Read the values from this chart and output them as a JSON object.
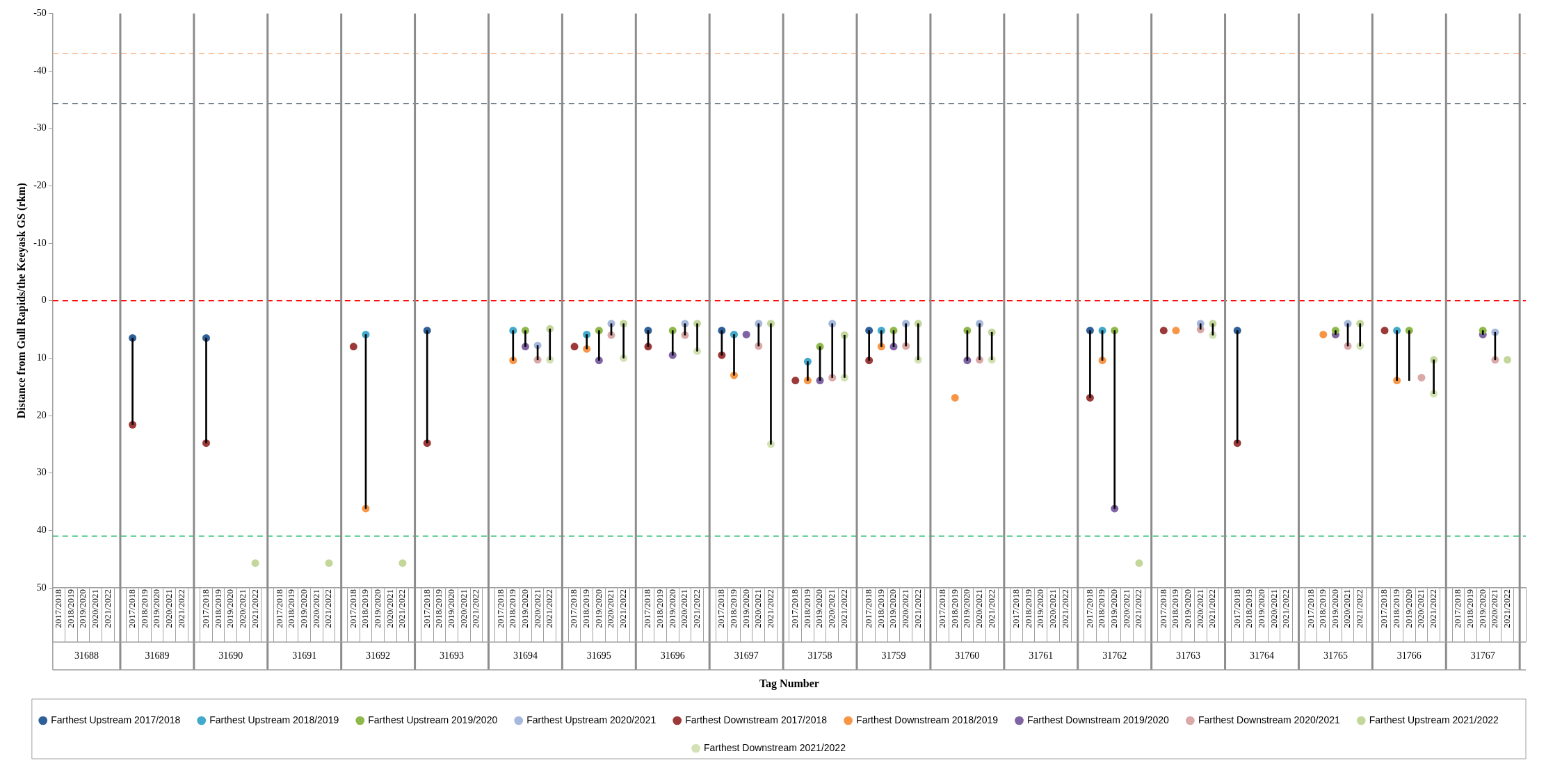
{
  "chart_data": {
    "type": "scatter",
    "xlabel": "Tag Number",
    "ylabel": "Distance from Gull Rapids/the Keeyask GS (rkm)",
    "categories": [
      "2017/2018",
      "2018/2019",
      "2019/2020",
      "2020/2021",
      "2021/2022",
      null,
      "2017/2018",
      "2018/2019",
      "2019/2020",
      "2020/2021",
      "2021/2022",
      null,
      "2017/2018",
      "2018/2019",
      "2019/2020",
      "2020/2021",
      "2021/2022",
      null,
      "2017/2018",
      "2018/2019",
      "2019/2020",
      "2020/2021",
      "2021/2022",
      null,
      "2017/2018",
      "2018/2019",
      "2019/2020",
      "2020/2021",
      "2021/2022",
      null,
      "2017/2018",
      "2018/2019",
      "2019/2020",
      "2020/2021",
      "2021/2022",
      null,
      "2017/2018",
      "2018/2019",
      "2019/2020",
      "2020/2021",
      "2021/2022",
      null,
      "2017/2018",
      "2018/2019",
      "2019/2020",
      "2020/2021",
      "2021/2022",
      null,
      "2017/2018",
      "2018/2019",
      "2019/2020",
      "2020/2021",
      "2021/2022",
      null,
      "2017/2018",
      "2018/2019",
      "2019/2020",
      "2020/2021",
      "2021/2022",
      null,
      "2017/2018",
      "2018/2019",
      "2019/2020",
      "2020/2021",
      "2021/2022",
      null,
      "2017/2018",
      "2018/2019",
      "2019/2020",
      "2020/2021",
      "2021/2022",
      null,
      "2017/2018",
      "2018/2019",
      "2019/2020",
      "2020/2021",
      "2021/2022",
      null,
      "2017/2018",
      "2018/2019",
      "2019/2020",
      "2020/2021",
      "2021/2022",
      null,
      "2017/2018",
      "2018/2019",
      "2019/2020",
      "2020/2021",
      "2021/2022",
      null,
      "2017/2018",
      "2018/2019",
      "2019/2020",
      "2020/2021",
      "2021/2022",
      null,
      "2017/2018",
      "2018/2019",
      "2019/2020",
      "2020/2021",
      "2021/2022",
      null,
      "2017/2018",
      "2018/2019",
      "2019/2020",
      "2020/2021",
      "2021/2022",
      null,
      "2017/2018",
      "2018/2019",
      "2019/2020",
      "2020/2021",
      "2021/2022",
      null,
      "2017/2018",
      "2018/2019",
      "2019/2020",
      "2020/2021",
      "2021/2022",
      null
    ],
    "annotations": [
      "31688",
      "31689",
      "31690",
      "31691",
      "31692",
      "31693",
      "31694",
      "31695",
      "31696",
      "31697",
      "31758",
      "31759",
      "31760",
      "31761",
      "31762",
      "31763",
      "31764",
      "31765",
      "31766",
      "31767"
    ],
    "ylim": [
      50,
      -50
    ],
    "yticks": [
      -50,
      -40,
      -30,
      -20,
      -10,
      0,
      10,
      20,
      30,
      40,
      50
    ],
    "legend": "bottom",
    "marker": "circle",
    "ref_lines": [
      {
        "axis": "y",
        "value": -43,
        "color": "#f4b183",
        "line_style": "dashed"
      },
      {
        "axis": "y",
        "value": -34.3,
        "color": "#44546a",
        "line_style": "dashed"
      },
      {
        "axis": "y",
        "value": 0,
        "color": "#ff0000",
        "line_style": "dashed"
      },
      {
        "axis": "y",
        "value": 41,
        "color": "#00b050",
        "line_style": "dashed"
      }
    ],
    "series": [
      {
        "type": "bar",
        "color": "#000000",
        "base": [
          null,
          null,
          null,
          null,
          null,
          null,
          6.5,
          null,
          null,
          null,
          null,
          null,
          6.5,
          null,
          null,
          null,
          null,
          null,
          null,
          null,
          null,
          null,
          null,
          null,
          null,
          5.9,
          null,
          null,
          null,
          null,
          5.2,
          null,
          null,
          null,
          null,
          null,
          null,
          5.2,
          5.2,
          7.8,
          4.9,
          null,
          null,
          5.9,
          5.2,
          4.0,
          4.0,
          null,
          5.2,
          null,
          5.2,
          4.0,
          4.0,
          null,
          5.2,
          5.9,
          null,
          4.0,
          4.0,
          null,
          null,
          10.6,
          8.0,
          4.0,
          6.0,
          null,
          5.2,
          5.2,
          5.2,
          4.0,
          4.0,
          null,
          null,
          null,
          5.2,
          4.0,
          5.5,
          null,
          null,
          null,
          null,
          null,
          null,
          null,
          5.2,
          5.2,
          5.2,
          null,
          null,
          null,
          null,
          null,
          null,
          4.0,
          4.0,
          null,
          5.2,
          null,
          null,
          null,
          null,
          null,
          null,
          null,
          5.2,
          4.0,
          4.0,
          null,
          null,
          5.2,
          5.2,
          null,
          10.3,
          null,
          null,
          null,
          5.2,
          5.5,
          null,
          null
        ],
        "values": [
          null,
          null,
          null,
          null,
          null,
          null,
          15.1,
          null,
          null,
          null,
          null,
          null,
          18.3,
          null,
          null,
          null,
          null,
          null,
          null,
          null,
          null,
          null,
          null,
          null,
          null,
          30.3,
          null,
          null,
          null,
          null,
          19.6,
          null,
          null,
          null,
          null,
          null,
          null,
          5.2,
          2.8,
          2.5,
          5.4,
          null,
          null,
          2.5,
          5.2,
          2.0,
          6.0,
          null,
          2.8,
          null,
          4.3,
          2.0,
          4.8,
          null,
          4.3,
          7.1,
          null,
          3.9,
          21.0,
          null,
          null,
          3.3,
          5.9,
          9.4,
          7.4,
          null,
          5.2,
          2.8,
          2.8,
          3.9,
          6.3,
          null,
          null,
          null,
          5.2,
          6.3,
          4.8,
          null,
          null,
          null,
          null,
          null,
          null,
          null,
          11.7,
          5.2,
          31.0,
          null,
          null,
          null,
          null,
          null,
          null,
          1.0,
          2.0,
          null,
          19.6,
          null,
          null,
          null,
          null,
          null,
          null,
          null,
          0.7,
          3.9,
          3.9,
          null,
          null,
          8.7,
          8.7,
          null,
          5.9,
          null,
          null,
          null,
          0.7,
          4.8,
          null,
          null
        ]
      },
      {
        "name": "Farthest Upstream 2017/2018",
        "color": "#2f5f98",
        "values": [
          null,
          null,
          null,
          null,
          null,
          null,
          6.5,
          null,
          null,
          null,
          null,
          null,
          6.5,
          null,
          null,
          null,
          null,
          null,
          null,
          null,
          null,
          null,
          null,
          null,
          null,
          null,
          null,
          null,
          null,
          null,
          5.2,
          null,
          null,
          null,
          null,
          null,
          null,
          null,
          null,
          null,
          null,
          null,
          null,
          null,
          null,
          null,
          null,
          null,
          5.2,
          null,
          null,
          null,
          null,
          null,
          5.2,
          null,
          null,
          null,
          null,
          null,
          null,
          null,
          null,
          null,
          null,
          null,
          5.2,
          null,
          null,
          null,
          null,
          null,
          null,
          null,
          null,
          null,
          null,
          null,
          null,
          null,
          null,
          null,
          null,
          null,
          5.2,
          null,
          null,
          null,
          null,
          null,
          null,
          null,
          null,
          null,
          null,
          null,
          5.2,
          null,
          null,
          null,
          null,
          null,
          null,
          null,
          null,
          null,
          null,
          null,
          null,
          null,
          null,
          null,
          null,
          null,
          null,
          null,
          null,
          null,
          null,
          null
        ]
      },
      {
        "name": "Farthest Upstream 2018/2019",
        "color": "#41a9c9",
        "values": [
          null,
          null,
          null,
          null,
          null,
          null,
          null,
          null,
          null,
          null,
          null,
          null,
          null,
          null,
          null,
          null,
          null,
          null,
          null,
          null,
          null,
          null,
          null,
          null,
          null,
          5.9,
          null,
          null,
          null,
          null,
          null,
          null,
          null,
          null,
          null,
          null,
          null,
          5.2,
          null,
          null,
          null,
          null,
          null,
          5.9,
          null,
          null,
          null,
          null,
          null,
          null,
          null,
          null,
          null,
          null,
          null,
          5.9,
          null,
          null,
          null,
          null,
          null,
          10.6,
          null,
          null,
          null,
          null,
          null,
          5.2,
          null,
          null,
          null,
          null,
          null,
          null,
          null,
          null,
          null,
          null,
          null,
          null,
          null,
          null,
          null,
          null,
          null,
          5.2,
          null,
          null,
          null,
          null,
          null,
          null,
          null,
          null,
          null,
          null,
          null,
          null,
          null,
          null,
          null,
          null,
          null,
          null,
          null,
          null,
          null,
          null,
          null,
          5.2,
          null,
          null,
          null,
          null,
          null,
          null,
          null,
          null,
          null,
          null
        ]
      },
      {
        "name": "Farthest Upstream 2019/2020",
        "color": "#8fb84a",
        "values": [
          null,
          null,
          null,
          null,
          null,
          null,
          null,
          null,
          null,
          null,
          null,
          null,
          null,
          null,
          null,
          null,
          null,
          null,
          null,
          null,
          null,
          null,
          null,
          null,
          null,
          null,
          null,
          null,
          null,
          null,
          null,
          null,
          null,
          null,
          null,
          null,
          null,
          null,
          5.2,
          null,
          null,
          null,
          null,
          null,
          5.2,
          null,
          null,
          null,
          null,
          null,
          5.2,
          null,
          null,
          null,
          null,
          null,
          null,
          null,
          null,
          null,
          null,
          null,
          8.0,
          null,
          null,
          null,
          null,
          null,
          5.2,
          null,
          null,
          null,
          null,
          null,
          5.2,
          null,
          null,
          null,
          null,
          null,
          null,
          null,
          null,
          null,
          null,
          null,
          5.2,
          null,
          null,
          null,
          null,
          null,
          null,
          null,
          null,
          null,
          null,
          null,
          null,
          null,
          null,
          null,
          null,
          null,
          5.2,
          null,
          null,
          null,
          null,
          null,
          5.2,
          null,
          null,
          null,
          null,
          null,
          5.2,
          null,
          null,
          null
        ]
      },
      {
        "name": "Farthest Upstream 2020/2021",
        "color": "#a6b8dc",
        "values": [
          null,
          null,
          null,
          null,
          null,
          null,
          null,
          null,
          null,
          null,
          null,
          null,
          null,
          null,
          null,
          null,
          null,
          null,
          null,
          null,
          null,
          null,
          null,
          null,
          null,
          null,
          null,
          null,
          null,
          null,
          null,
          null,
          null,
          null,
          null,
          null,
          null,
          null,
          null,
          7.8,
          null,
          null,
          null,
          null,
          null,
          4.0,
          null,
          null,
          null,
          null,
          null,
          4.0,
          null,
          null,
          null,
          null,
          null,
          4.0,
          null,
          null,
          null,
          null,
          null,
          4.0,
          null,
          null,
          null,
          null,
          null,
          4.0,
          null,
          null,
          null,
          null,
          null,
          4.0,
          null,
          null,
          null,
          null,
          null,
          null,
          null,
          null,
          null,
          null,
          null,
          null,
          null,
          null,
          null,
          null,
          null,
          4.0,
          null,
          null,
          null,
          null,
          null,
          null,
          null,
          null,
          null,
          null,
          null,
          4.0,
          null,
          null,
          null,
          null,
          null,
          null,
          null,
          null,
          null,
          null,
          null,
          5.5,
          null,
          null
        ]
      },
      {
        "name": "Farthest Downstream 2017/2018",
        "color": "#9b3a38",
        "values": [
          null,
          null,
          null,
          null,
          null,
          null,
          21.6,
          null,
          null,
          null,
          null,
          null,
          24.8,
          null,
          null,
          null,
          null,
          null,
          null,
          null,
          null,
          null,
          null,
          null,
          8.0,
          null,
          null,
          null,
          null,
          null,
          24.8,
          null,
          null,
          null,
          null,
          null,
          null,
          null,
          null,
          null,
          null,
          null,
          8.0,
          null,
          null,
          null,
          null,
          null,
          8.0,
          null,
          null,
          null,
          null,
          null,
          9.5,
          null,
          null,
          null,
          null,
          null,
          13.9,
          null,
          null,
          null,
          null,
          null,
          10.4,
          null,
          null,
          null,
          null,
          null,
          null,
          null,
          null,
          null,
          null,
          null,
          null,
          null,
          null,
          null,
          null,
          null,
          16.9,
          null,
          null,
          null,
          null,
          null,
          5.2,
          null,
          null,
          null,
          null,
          null,
          24.8,
          null,
          null,
          null,
          null,
          null,
          null,
          null,
          null,
          null,
          null,
          null,
          5.2,
          null,
          null,
          null,
          null,
          null,
          null,
          null,
          null,
          null,
          null,
          null
        ]
      },
      {
        "name": "Farthest Downstream 2018/2019",
        "color": "#f79646",
        "values": [
          null,
          null,
          null,
          null,
          null,
          null,
          null,
          null,
          null,
          null,
          null,
          null,
          null,
          null,
          null,
          null,
          null,
          null,
          null,
          null,
          null,
          null,
          null,
          null,
          null,
          36.2,
          null,
          null,
          null,
          null,
          null,
          null,
          null,
          null,
          null,
          null,
          null,
          10.4,
          null,
          null,
          null,
          null,
          null,
          8.4,
          null,
          null,
          null,
          null,
          null,
          null,
          null,
          null,
          null,
          null,
          null,
          13.0,
          null,
          null,
          null,
          null,
          null,
          13.9,
          null,
          null,
          null,
          null,
          null,
          8.0,
          null,
          null,
          null,
          null,
          null,
          16.9,
          null,
          null,
          null,
          null,
          null,
          null,
          null,
          null,
          null,
          null,
          null,
          10.4,
          null,
          null,
          null,
          null,
          null,
          5.2,
          null,
          null,
          null,
          null,
          null,
          null,
          null,
          null,
          null,
          null,
          null,
          5.9,
          null,
          null,
          null,
          null,
          null,
          13.9,
          null,
          null,
          null,
          null,
          null,
          null,
          null,
          null,
          null,
          null
        ]
      },
      {
        "name": "Farthest Downstream 2019/2020",
        "color": "#7f63a3",
        "values": [
          null,
          null,
          null,
          null,
          null,
          null,
          null,
          null,
          null,
          null,
          null,
          null,
          null,
          null,
          null,
          null,
          null,
          null,
          null,
          null,
          null,
          null,
          null,
          null,
          null,
          null,
          null,
          null,
          null,
          null,
          null,
          null,
          null,
          null,
          null,
          null,
          null,
          null,
          8.0,
          null,
          null,
          null,
          null,
          null,
          10.4,
          null,
          null,
          null,
          null,
          null,
          9.5,
          null,
          null,
          null,
          null,
          null,
          5.9,
          null,
          null,
          null,
          null,
          null,
          13.9,
          null,
          null,
          null,
          null,
          null,
          8.0,
          null,
          null,
          null,
          null,
          null,
          10.4,
          null,
          null,
          null,
          null,
          null,
          null,
          null,
          null,
          null,
          null,
          null,
          36.2,
          null,
          null,
          null,
          null,
          null,
          null,
          null,
          null,
          null,
          null,
          null,
          null,
          null,
          null,
          null,
          null,
          null,
          5.9,
          null,
          null,
          null,
          null,
          null,
          null,
          null,
          null,
          null,
          null,
          null,
          5.9,
          null,
          null,
          null
        ]
      },
      {
        "name": "Farthest Downstream 2020/2021",
        "color": "#dba8a8",
        "values": [
          null,
          null,
          null,
          null,
          null,
          null,
          null,
          null,
          null,
          null,
          null,
          null,
          null,
          null,
          null,
          null,
          null,
          null,
          null,
          null,
          null,
          null,
          null,
          null,
          null,
          null,
          null,
          null,
          null,
          null,
          null,
          null,
          null,
          null,
          null,
          null,
          null,
          null,
          null,
          10.3,
          null,
          null,
          null,
          null,
          null,
          6.0,
          null,
          null,
          null,
          null,
          null,
          6.0,
          null,
          null,
          null,
          null,
          null,
          7.9,
          null,
          null,
          null,
          null,
          null,
          13.4,
          null,
          null,
          null,
          null,
          null,
          7.9,
          null,
          null,
          null,
          null,
          null,
          10.3,
          null,
          null,
          null,
          null,
          null,
          null,
          null,
          null,
          null,
          null,
          null,
          null,
          null,
          null,
          null,
          null,
          null,
          5.0,
          null,
          null,
          null,
          null,
          null,
          null,
          null,
          null,
          null,
          null,
          null,
          7.9,
          null,
          null,
          null,
          null,
          null,
          13.4,
          null,
          null,
          null,
          null,
          null,
          10.3,
          null,
          null
        ]
      },
      {
        "name": "Farthest Upstream 2021/2022",
        "color": "#c4d79b",
        "values": [
          null,
          null,
          null,
          null,
          null,
          null,
          null,
          null,
          null,
          null,
          null,
          null,
          null,
          null,
          null,
          null,
          45.7,
          null,
          null,
          null,
          null,
          null,
          45.7,
          null,
          null,
          null,
          null,
          null,
          45.7,
          null,
          null,
          null,
          null,
          null,
          null,
          null,
          null,
          null,
          null,
          null,
          4.9,
          null,
          null,
          null,
          null,
          null,
          4.0,
          null,
          null,
          null,
          null,
          null,
          4.0,
          null,
          null,
          null,
          null,
          null,
          4.0,
          null,
          null,
          null,
          null,
          null,
          6.0,
          null,
          null,
          null,
          null,
          null,
          4.0,
          null,
          null,
          null,
          null,
          null,
          5.5,
          null,
          null,
          null,
          null,
          null,
          null,
          null,
          null,
          null,
          null,
          null,
          45.7,
          null,
          null,
          null,
          null,
          null,
          4.0,
          null,
          null,
          null,
          null,
          null,
          null,
          null,
          null,
          null,
          null,
          null,
          4.0,
          null,
          null,
          null,
          null,
          null,
          10.3,
          null,
          null,
          null,
          null,
          null,
          10.3,
          null
        ]
      },
      {
        "name": "Farthest Downstream 2021/2022",
        "color": "#d3e2b4",
        "values": [
          null,
          null,
          null,
          null,
          null,
          null,
          null,
          null,
          null,
          null,
          null,
          null,
          null,
          null,
          null,
          null,
          null,
          null,
          null,
          null,
          null,
          null,
          null,
          null,
          null,
          null,
          null,
          null,
          null,
          null,
          null,
          null,
          null,
          null,
          null,
          null,
          null,
          null,
          null,
          null,
          10.3,
          null,
          null,
          null,
          null,
          null,
          10.0,
          null,
          null,
          null,
          null,
          null,
          8.8,
          null,
          null,
          null,
          null,
          null,
          25.0,
          null,
          null,
          null,
          null,
          null,
          13.4,
          null,
          null,
          null,
          null,
          null,
          10.3,
          null,
          null,
          null,
          null,
          null,
          10.3,
          null,
          null,
          null,
          null,
          null,
          null,
          null,
          null,
          null,
          null,
          null,
          null,
          null,
          null,
          null,
          null,
          null,
          6.0,
          null,
          null,
          null,
          null,
          null,
          null,
          null,
          null,
          null,
          null,
          null,
          7.9,
          null,
          null,
          null,
          null,
          null,
          16.2,
          null,
          null,
          null,
          null,
          null,
          null,
          null
        ]
      }
    ]
  }
}
